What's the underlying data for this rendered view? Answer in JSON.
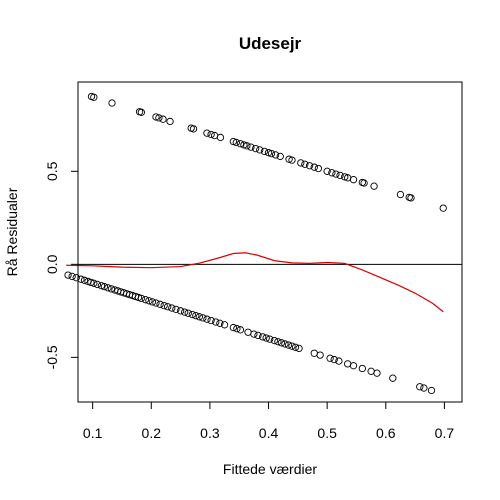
{
  "chart_data": {
    "type": "scatter",
    "title": "Udesejr",
    "xlabel": "Fittede værdier",
    "ylabel": "Rå Residualer",
    "xlim": [
      0.075,
      0.73
    ],
    "ylim": [
      -0.74,
      0.98
    ],
    "xticks": [
      {
        "value": 0.1,
        "label": "0.1"
      },
      {
        "value": 0.2,
        "label": "0.2"
      },
      {
        "value": 0.3,
        "label": "0.3"
      },
      {
        "value": 0.4,
        "label": "0.4"
      },
      {
        "value": 0.5,
        "label": "0.5"
      },
      {
        "value": 0.6,
        "label": "0.6"
      },
      {
        "value": 0.7,
        "label": "0.7"
      }
    ],
    "yticks": [
      {
        "value": -0.5,
        "label": "-0.5"
      },
      {
        "value": 0.0,
        "label": "0.0"
      },
      {
        "value": 0.5,
        "label": "0.5"
      }
    ],
    "reference_line_y": 0,
    "grid": false,
    "series": [
      {
        "marker": "open-circle",
        "color": "#000000",
        "points": [
          {
            "x": 0.098,
            "y": 0.902
          },
          {
            "x": 0.102,
            "y": 0.898
          },
          {
            "x": 0.133,
            "y": 0.867
          },
          {
            "x": 0.18,
            "y": 0.82
          },
          {
            "x": 0.183,
            "y": 0.817
          },
          {
            "x": 0.208,
            "y": 0.792
          },
          {
            "x": 0.213,
            "y": 0.787
          },
          {
            "x": 0.22,
            "y": 0.78
          },
          {
            "x": 0.232,
            "y": 0.768
          },
          {
            "x": 0.268,
            "y": 0.732
          },
          {
            "x": 0.272,
            "y": 0.728
          },
          {
            "x": 0.295,
            "y": 0.705
          },
          {
            "x": 0.302,
            "y": 0.698
          },
          {
            "x": 0.308,
            "y": 0.692
          },
          {
            "x": 0.318,
            "y": 0.682
          },
          {
            "x": 0.34,
            "y": 0.66
          },
          {
            "x": 0.345,
            "y": 0.655
          },
          {
            "x": 0.352,
            "y": 0.648
          },
          {
            "x": 0.358,
            "y": 0.642
          },
          {
            "x": 0.363,
            "y": 0.637
          },
          {
            "x": 0.37,
            "y": 0.63
          },
          {
            "x": 0.378,
            "y": 0.622
          },
          {
            "x": 0.385,
            "y": 0.615
          },
          {
            "x": 0.393,
            "y": 0.607
          },
          {
            "x": 0.4,
            "y": 0.6
          },
          {
            "x": 0.405,
            "y": 0.595
          },
          {
            "x": 0.412,
            "y": 0.588
          },
          {
            "x": 0.42,
            "y": 0.58
          },
          {
            "x": 0.435,
            "y": 0.565
          },
          {
            "x": 0.44,
            "y": 0.56
          },
          {
            "x": 0.455,
            "y": 0.545
          },
          {
            "x": 0.462,
            "y": 0.538
          },
          {
            "x": 0.47,
            "y": 0.53
          },
          {
            "x": 0.478,
            "y": 0.522
          },
          {
            "x": 0.485,
            "y": 0.515
          },
          {
            "x": 0.5,
            "y": 0.5
          },
          {
            "x": 0.508,
            "y": 0.492
          },
          {
            "x": 0.515,
            "y": 0.485
          },
          {
            "x": 0.522,
            "y": 0.478
          },
          {
            "x": 0.53,
            "y": 0.47
          },
          {
            "x": 0.535,
            "y": 0.465
          },
          {
            "x": 0.545,
            "y": 0.455
          },
          {
            "x": 0.56,
            "y": 0.44
          },
          {
            "x": 0.563,
            "y": 0.437
          },
          {
            "x": 0.58,
            "y": 0.42
          },
          {
            "x": 0.625,
            "y": 0.375
          },
          {
            "x": 0.64,
            "y": 0.36
          },
          {
            "x": 0.643,
            "y": 0.357
          },
          {
            "x": 0.698,
            "y": 0.302
          },
          {
            "x": 0.058,
            "y": -0.058
          },
          {
            "x": 0.065,
            "y": -0.065
          },
          {
            "x": 0.072,
            "y": -0.072
          },
          {
            "x": 0.08,
            "y": -0.08
          },
          {
            "x": 0.086,
            "y": -0.086
          },
          {
            "x": 0.092,
            "y": -0.092
          },
          {
            "x": 0.097,
            "y": -0.097
          },
          {
            "x": 0.102,
            "y": -0.102
          },
          {
            "x": 0.108,
            "y": -0.108
          },
          {
            "x": 0.115,
            "y": -0.115
          },
          {
            "x": 0.12,
            "y": -0.12
          },
          {
            "x": 0.126,
            "y": -0.126
          },
          {
            "x": 0.132,
            "y": -0.132
          },
          {
            "x": 0.138,
            "y": -0.138
          },
          {
            "x": 0.143,
            "y": -0.143
          },
          {
            "x": 0.148,
            "y": -0.148
          },
          {
            "x": 0.153,
            "y": -0.153
          },
          {
            "x": 0.158,
            "y": -0.158
          },
          {
            "x": 0.163,
            "y": -0.163
          },
          {
            "x": 0.168,
            "y": -0.168
          },
          {
            "x": 0.173,
            "y": -0.173
          },
          {
            "x": 0.178,
            "y": -0.178
          },
          {
            "x": 0.183,
            "y": -0.183
          },
          {
            "x": 0.19,
            "y": -0.19
          },
          {
            "x": 0.196,
            "y": -0.196
          },
          {
            "x": 0.202,
            "y": -0.202
          },
          {
            "x": 0.208,
            "y": -0.208
          },
          {
            "x": 0.215,
            "y": -0.215
          },
          {
            "x": 0.222,
            "y": -0.222
          },
          {
            "x": 0.228,
            "y": -0.228
          },
          {
            "x": 0.235,
            "y": -0.235
          },
          {
            "x": 0.242,
            "y": -0.242
          },
          {
            "x": 0.25,
            "y": -0.25
          },
          {
            "x": 0.257,
            "y": -0.257
          },
          {
            "x": 0.263,
            "y": -0.263
          },
          {
            "x": 0.27,
            "y": -0.27
          },
          {
            "x": 0.276,
            "y": -0.276
          },
          {
            "x": 0.282,
            "y": -0.282
          },
          {
            "x": 0.288,
            "y": -0.288
          },
          {
            "x": 0.295,
            "y": -0.295
          },
          {
            "x": 0.302,
            "y": -0.302
          },
          {
            "x": 0.31,
            "y": -0.31
          },
          {
            "x": 0.317,
            "y": -0.317
          },
          {
            "x": 0.325,
            "y": -0.325
          },
          {
            "x": 0.34,
            "y": -0.34
          },
          {
            "x": 0.346,
            "y": -0.346
          },
          {
            "x": 0.352,
            "y": -0.352
          },
          {
            "x": 0.365,
            "y": -0.365
          },
          {
            "x": 0.375,
            "y": -0.375
          },
          {
            "x": 0.382,
            "y": -0.382
          },
          {
            "x": 0.39,
            "y": -0.39
          },
          {
            "x": 0.396,
            "y": -0.396
          },
          {
            "x": 0.402,
            "y": -0.402
          },
          {
            "x": 0.41,
            "y": -0.41
          },
          {
            "x": 0.416,
            "y": -0.416
          },
          {
            "x": 0.422,
            "y": -0.422
          },
          {
            "x": 0.428,
            "y": -0.428
          },
          {
            "x": 0.434,
            "y": -0.434
          },
          {
            "x": 0.44,
            "y": -0.44
          },
          {
            "x": 0.446,
            "y": -0.446
          },
          {
            "x": 0.452,
            "y": -0.452
          },
          {
            "x": 0.478,
            "y": -0.478
          },
          {
            "x": 0.488,
            "y": -0.488
          },
          {
            "x": 0.505,
            "y": -0.505
          },
          {
            "x": 0.512,
            "y": -0.512
          },
          {
            "x": 0.52,
            "y": -0.52
          },
          {
            "x": 0.535,
            "y": -0.535
          },
          {
            "x": 0.545,
            "y": -0.545
          },
          {
            "x": 0.56,
            "y": -0.56
          },
          {
            "x": 0.575,
            "y": -0.575
          },
          {
            "x": 0.585,
            "y": -0.585
          },
          {
            "x": 0.612,
            "y": -0.612
          },
          {
            "x": 0.658,
            "y": -0.658
          },
          {
            "x": 0.665,
            "y": -0.665
          },
          {
            "x": 0.678,
            "y": -0.678
          }
        ]
      },
      {
        "type": "line",
        "color": "#dd0000",
        "points": [
          {
            "x": 0.055,
            "y": -0.005
          },
          {
            "x": 0.1,
            "y": -0.008
          },
          {
            "x": 0.15,
            "y": -0.015
          },
          {
            "x": 0.2,
            "y": -0.018
          },
          {
            "x": 0.25,
            "y": -0.012
          },
          {
            "x": 0.28,
            "y": 0.005
          },
          {
            "x": 0.31,
            "y": 0.03
          },
          {
            "x": 0.34,
            "y": 0.058
          },
          {
            "x": 0.36,
            "y": 0.062
          },
          {
            "x": 0.38,
            "y": 0.05
          },
          {
            "x": 0.41,
            "y": 0.02
          },
          {
            "x": 0.44,
            "y": 0.008
          },
          {
            "x": 0.47,
            "y": 0.005
          },
          {
            "x": 0.5,
            "y": 0.01
          },
          {
            "x": 0.53,
            "y": 0.005
          },
          {
            "x": 0.56,
            "y": -0.03
          },
          {
            "x": 0.59,
            "y": -0.07
          },
          {
            "x": 0.62,
            "y": -0.11
          },
          {
            "x": 0.65,
            "y": -0.155
          },
          {
            "x": 0.68,
            "y": -0.21
          },
          {
            "x": 0.698,
            "y": -0.255
          }
        ]
      }
    ]
  }
}
